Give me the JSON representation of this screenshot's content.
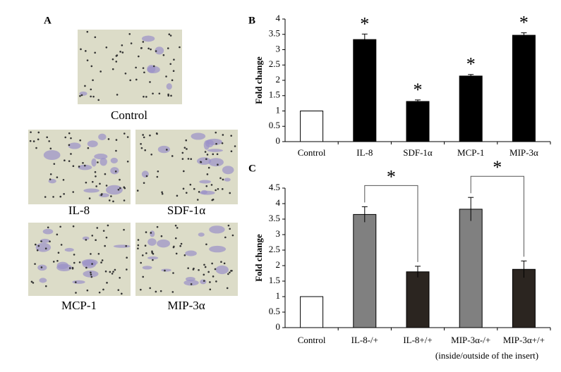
{
  "panel_a": {
    "label": "A",
    "images": [
      {
        "caption": "Control"
      },
      {
        "caption": "IL-8"
      },
      {
        "caption": "SDF-1α"
      },
      {
        "caption": "MCP-1"
      },
      {
        "caption": "MIP-3α"
      }
    ]
  },
  "chart_data": [
    {
      "type": "bar",
      "panel_label": "B",
      "y_label": "Fold change",
      "categories": [
        "Control",
        "IL-8",
        "SDF-1α",
        "MCP-1",
        "MIP-3α"
      ],
      "values": [
        1,
        3.33,
        1.31,
        2.14,
        3.47
      ],
      "errors": [
        null,
        0.18,
        0.05,
        0.05,
        0.08
      ],
      "colors": [
        "#ffffff",
        "#000000",
        "#000000",
        "#000000",
        "#000000"
      ],
      "significance": [
        null,
        "*",
        "*",
        "*",
        "*"
      ],
      "ylim": [
        0,
        4
      ],
      "yticks": [
        0,
        0.5,
        1,
        1.5,
        2,
        2.5,
        3,
        3.5,
        4
      ]
    },
    {
      "type": "bar",
      "panel_label": "C",
      "y_label": "Fold change",
      "categories": [
        "Control",
        "IL-8-/+",
        "IL-8+/+",
        "MIP-3α-/+",
        "MIP-3α+/+"
      ],
      "values": [
        1,
        3.65,
        1.8,
        3.82,
        1.88
      ],
      "errors": [
        null,
        0.25,
        0.18,
        0.38,
        0.27
      ],
      "colors": [
        "#ffffff",
        "#808080",
        "#2b2520",
        "#808080",
        "#2b2520"
      ],
      "comparisons": [
        "*",
        "*"
      ],
      "x_note": "(inside/outside of the insert)",
      "ylim": [
        0,
        4.5
      ],
      "yticks": [
        0,
        0.5,
        1,
        1.5,
        2,
        2.5,
        3,
        3.5,
        4,
        4.5
      ]
    }
  ]
}
